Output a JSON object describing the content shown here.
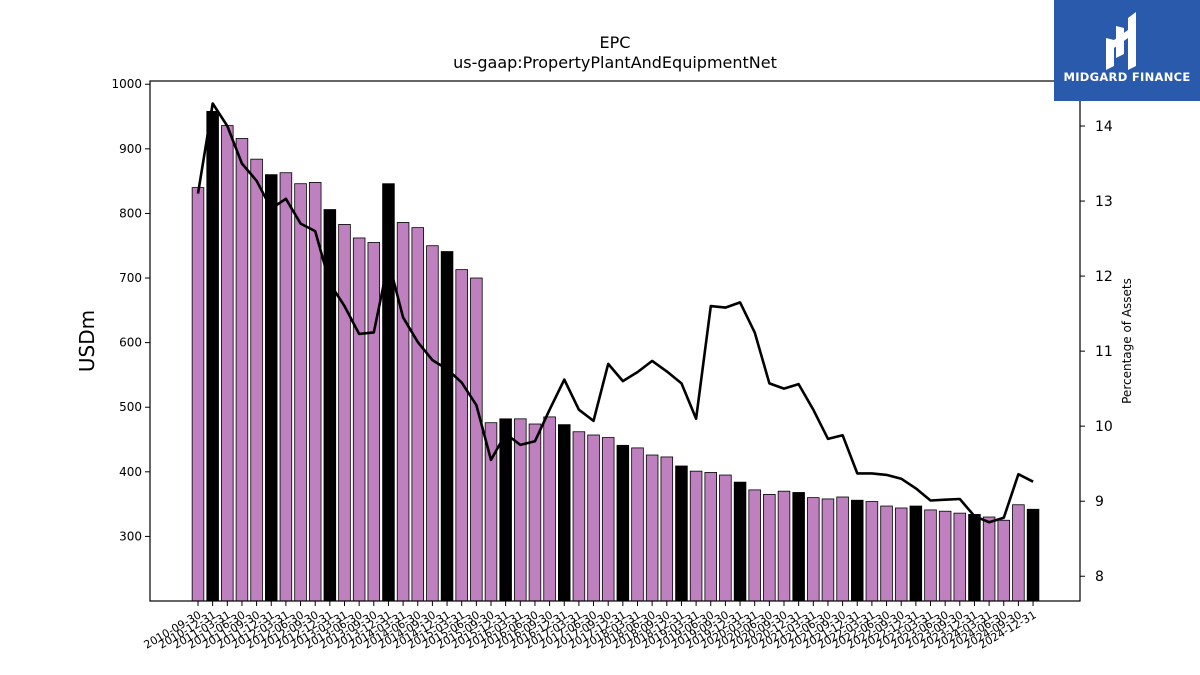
{
  "brand": {
    "name": "MIDGARD FINANCE",
    "bg_color": "#2a5aab"
  },
  "chart_data": {
    "type": "bar",
    "title": "EPC",
    "subtitle": "us-gaap:PropertyPlantAndEquipmentNet",
    "ylabel": "USDm",
    "y2label": "Percentage of Assets",
    "ylim": [
      200,
      1005
    ],
    "y2lim": [
      7.67,
      14.6
    ],
    "yticks": [
      300,
      400,
      500,
      600,
      700,
      800,
      900,
      1000
    ],
    "y2ticks": [
      8,
      9,
      10,
      11,
      12,
      13,
      14
    ],
    "colors": {
      "bar": "#bf80bf",
      "bar_highlight": "#000000",
      "line": "#000000"
    },
    "categories": [
      "2010-09-30",
      "2010-12-31",
      "2011-03-31",
      "2011-06-30",
      "2011-09-30",
      "2011-12-31",
      "2012-03-31",
      "2012-06-30",
      "2012-09-30",
      "2012-12-31",
      "2013-03-31",
      "2013-06-30",
      "2013-09-30",
      "2013-12-31",
      "2014-03-31",
      "2014-06-30",
      "2014-09-30",
      "2014-12-31",
      "2015-03-31",
      "2015-06-30",
      "2015-09-30",
      "2015-12-31",
      "2016-03-31",
      "2016-06-30",
      "2016-09-30",
      "2016-12-31",
      "2017-03-31",
      "2017-06-30",
      "2017-09-30",
      "2017-12-31",
      "2018-03-31",
      "2018-06-30",
      "2018-09-30",
      "2018-12-31",
      "2019-03-31",
      "2019-06-30",
      "2019-09-30",
      "2019-12-31",
      "2020-03-31",
      "2020-06-30",
      "2020-09-30",
      "2020-12-31",
      "2021-03-31",
      "2021-06-30",
      "2021-09-30",
      "2021-12-31",
      "2022-03-31",
      "2022-06-30",
      "2022-09-30",
      "2022-12-31",
      "2023-03-31",
      "2023-06-30",
      "2023-09-30",
      "2023-12-31",
      "2024-03-31",
      "2024-06-30",
      "2024-09-30",
      "2024-12-31"
    ],
    "series": [
      {
        "values": [
          840,
          958,
          936,
          916,
          884,
          860,
          863,
          846,
          848,
          806,
          783,
          762,
          755,
          846,
          786,
          778,
          750,
          741,
          713,
          700,
          476,
          482,
          482,
          474,
          485,
          473,
          462,
          457,
          453,
          441,
          437,
          426,
          423,
          409,
          401,
          399,
          395,
          384,
          372,
          365,
          370,
          368,
          360,
          358,
          361,
          356,
          354,
          347,
          344,
          347,
          341,
          339,
          336,
          334,
          330,
          325,
          349,
          342
        ]
      },
      {
        "axis": "right",
        "values": [
          13.1,
          14.3,
          14.0,
          13.5,
          13.27,
          12.9,
          13.03,
          12.7,
          12.6,
          11.9,
          11.6,
          11.23,
          11.25,
          12.2,
          11.45,
          11.12,
          10.88,
          10.76,
          10.58,
          10.28,
          9.55,
          9.9,
          9.75,
          9.8,
          10.22,
          10.62,
          10.22,
          10.07,
          10.83,
          10.6,
          10.72,
          10.87,
          10.73,
          10.57,
          10.1,
          11.6,
          11.58,
          11.65,
          11.25,
          10.57,
          10.5,
          10.56,
          10.22,
          9.83,
          9.88,
          9.37,
          9.37,
          9.35,
          9.3,
          9.17,
          9.01,
          9.02,
          9.03,
          8.8,
          8.72,
          8.78,
          9.36,
          9.26
        ]
      }
    ]
  }
}
